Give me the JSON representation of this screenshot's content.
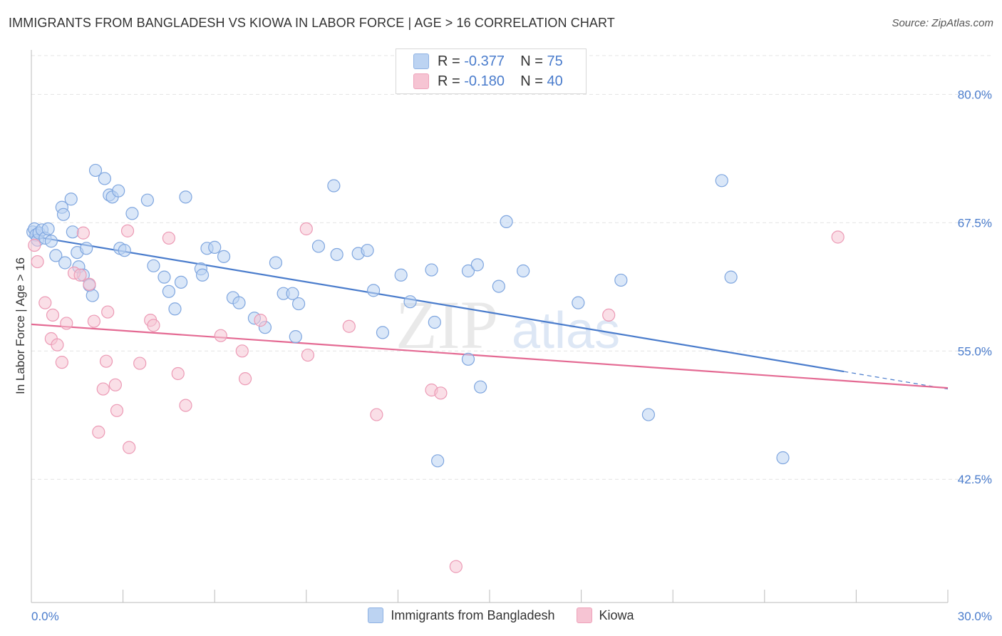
{
  "header": {
    "title": "IMMIGRANTS FROM BANGLADESH VS KIOWA IN LABOR FORCE | AGE > 16 CORRELATION CHART",
    "source": "Source: ZipAtlas.com"
  },
  "watermark": {
    "zip": "ZIP",
    "atlas": "atlas"
  },
  "legend": {
    "rows": [
      {
        "r_label": "R =",
        "r_value": "-0.377",
        "n_label": "N =",
        "n_value": "75",
        "color": "#a9c6ee"
      },
      {
        "r_label": "R =",
        "r_value": "-0.180",
        "n_label": "N =",
        "n_value": "40",
        "color": "#f4b7c9"
      }
    ]
  },
  "bottom_legend": {
    "series1": "Immigrants from Bangladesh",
    "series2": "Kiowa"
  },
  "colors": {
    "blue": "#4a7ccc",
    "blue_fill": "#bcd3f2",
    "pink": "#e46a93",
    "pink_fill": "#f6c4d3",
    "grid": "#e6e6e6",
    "axis_label": "#4a7ccc"
  },
  "chart_data": {
    "type": "scatter",
    "title": "IMMIGRANTS FROM BANGLADESH VS KIOWA IN LABOR FORCE | AGE > 16 CORRELATION CHART",
    "xlabel": "",
    "ylabel": "In Labor Force | Age > 16",
    "xlim": [
      0,
      30
    ],
    "ylim": [
      30.5,
      83.5
    ],
    "x_tick_labels": [
      "0.0%",
      "30.0%"
    ],
    "y_ticks": [
      42.5,
      55.0,
      67.5,
      80.0
    ],
    "y_tick_labels": [
      "42.5%",
      "55.0%",
      "67.5%",
      "80.0%"
    ],
    "grid": true,
    "legend_position": "top-center",
    "series": [
      {
        "name": "Immigrants from Bangladesh",
        "color": "#4a7ccc",
        "trend": {
          "x": [
            0,
            26.6
          ],
          "y": [
            66.2,
            53.0
          ],
          "dashed_to": [
            30,
            51.3
          ]
        },
        "points": [
          [
            0.05,
            66.6
          ],
          [
            0.1,
            66.9
          ],
          [
            0.15,
            66.3
          ],
          [
            0.2,
            65.8
          ],
          [
            0.25,
            66.5
          ],
          [
            0.35,
            66.8
          ],
          [
            0.45,
            66.0
          ],
          [
            0.55,
            66.9
          ],
          [
            0.65,
            65.7
          ],
          [
            0.8,
            64.3
          ],
          [
            1.0,
            69.0
          ],
          [
            1.05,
            68.3
          ],
          [
            1.1,
            63.6
          ],
          [
            1.3,
            69.8
          ],
          [
            1.35,
            66.6
          ],
          [
            1.5,
            64.6
          ],
          [
            1.55,
            63.2
          ],
          [
            1.7,
            62.4
          ],
          [
            1.8,
            65.0
          ],
          [
            1.9,
            61.4
          ],
          [
            2.0,
            60.4
          ],
          [
            2.1,
            72.6
          ],
          [
            2.4,
            71.8
          ],
          [
            2.55,
            70.2
          ],
          [
            2.65,
            70.0
          ],
          [
            2.85,
            70.6
          ],
          [
            2.9,
            65.0
          ],
          [
            3.05,
            64.8
          ],
          [
            3.3,
            68.4
          ],
          [
            3.8,
            69.7
          ],
          [
            4.0,
            63.3
          ],
          [
            4.35,
            62.2
          ],
          [
            4.5,
            60.8
          ],
          [
            4.7,
            59.1
          ],
          [
            4.9,
            61.7
          ],
          [
            5.05,
            70.0
          ],
          [
            5.55,
            63.0
          ],
          [
            5.6,
            62.4
          ],
          [
            5.75,
            65.0
          ],
          [
            6.0,
            65.1
          ],
          [
            6.3,
            64.2
          ],
          [
            6.6,
            60.2
          ],
          [
            6.8,
            59.7
          ],
          [
            7.3,
            58.2
          ],
          [
            7.65,
            57.3
          ],
          [
            8.0,
            63.6
          ],
          [
            8.25,
            60.6
          ],
          [
            8.55,
            60.6
          ],
          [
            8.65,
            56.4
          ],
          [
            8.75,
            59.6
          ],
          [
            9.4,
            65.2
          ],
          [
            9.9,
            71.1
          ],
          [
            10.0,
            64.4
          ],
          [
            10.7,
            64.5
          ],
          [
            11.0,
            64.8
          ],
          [
            11.2,
            60.9
          ],
          [
            11.5,
            56.8
          ],
          [
            12.1,
            62.4
          ],
          [
            12.4,
            59.8
          ],
          [
            13.1,
            62.9
          ],
          [
            13.2,
            57.8
          ],
          [
            13.3,
            44.3
          ],
          [
            14.3,
            62.8
          ],
          [
            14.3,
            54.2
          ],
          [
            14.6,
            63.4
          ],
          [
            14.7,
            51.5
          ],
          [
            15.3,
            61.3
          ],
          [
            15.55,
            67.6
          ],
          [
            16.1,
            62.8
          ],
          [
            17.9,
            59.7
          ],
          [
            19.3,
            61.9
          ],
          [
            20.2,
            48.8
          ],
          [
            22.6,
            71.6
          ],
          [
            22.9,
            62.2
          ],
          [
            24.6,
            44.6
          ]
        ]
      },
      {
        "name": "Kiowa",
        "color": "#e46a93",
        "trend": {
          "x": [
            0,
            30
          ],
          "y": [
            57.6,
            51.4
          ]
        },
        "points": [
          [
            0.1,
            65.3
          ],
          [
            0.2,
            63.7
          ],
          [
            0.45,
            59.7
          ],
          [
            0.65,
            56.2
          ],
          [
            0.7,
            58.5
          ],
          [
            0.85,
            55.6
          ],
          [
            1.0,
            53.9
          ],
          [
            1.15,
            57.7
          ],
          [
            1.4,
            62.6
          ],
          [
            1.6,
            62.4
          ],
          [
            1.7,
            66.5
          ],
          [
            1.9,
            61.5
          ],
          [
            2.05,
            57.9
          ],
          [
            2.2,
            47.1
          ],
          [
            2.35,
            51.3
          ],
          [
            2.45,
            54.0
          ],
          [
            2.5,
            58.8
          ],
          [
            2.75,
            51.7
          ],
          [
            2.8,
            49.2
          ],
          [
            3.15,
            66.7
          ],
          [
            3.2,
            45.6
          ],
          [
            3.55,
            53.8
          ],
          [
            3.9,
            58.0
          ],
          [
            4.0,
            57.5
          ],
          [
            4.5,
            66.0
          ],
          [
            4.8,
            52.8
          ],
          [
            5.05,
            49.7
          ],
          [
            6.2,
            56.5
          ],
          [
            6.9,
            55.0
          ],
          [
            7.0,
            52.3
          ],
          [
            7.5,
            58.0
          ],
          [
            9.0,
            66.9
          ],
          [
            9.05,
            54.6
          ],
          [
            10.4,
            57.4
          ],
          [
            11.3,
            48.8
          ],
          [
            13.1,
            51.2
          ],
          [
            13.4,
            50.9
          ],
          [
            13.9,
            34.0
          ],
          [
            18.9,
            58.5
          ],
          [
            26.4,
            66.1
          ]
        ]
      }
    ]
  }
}
